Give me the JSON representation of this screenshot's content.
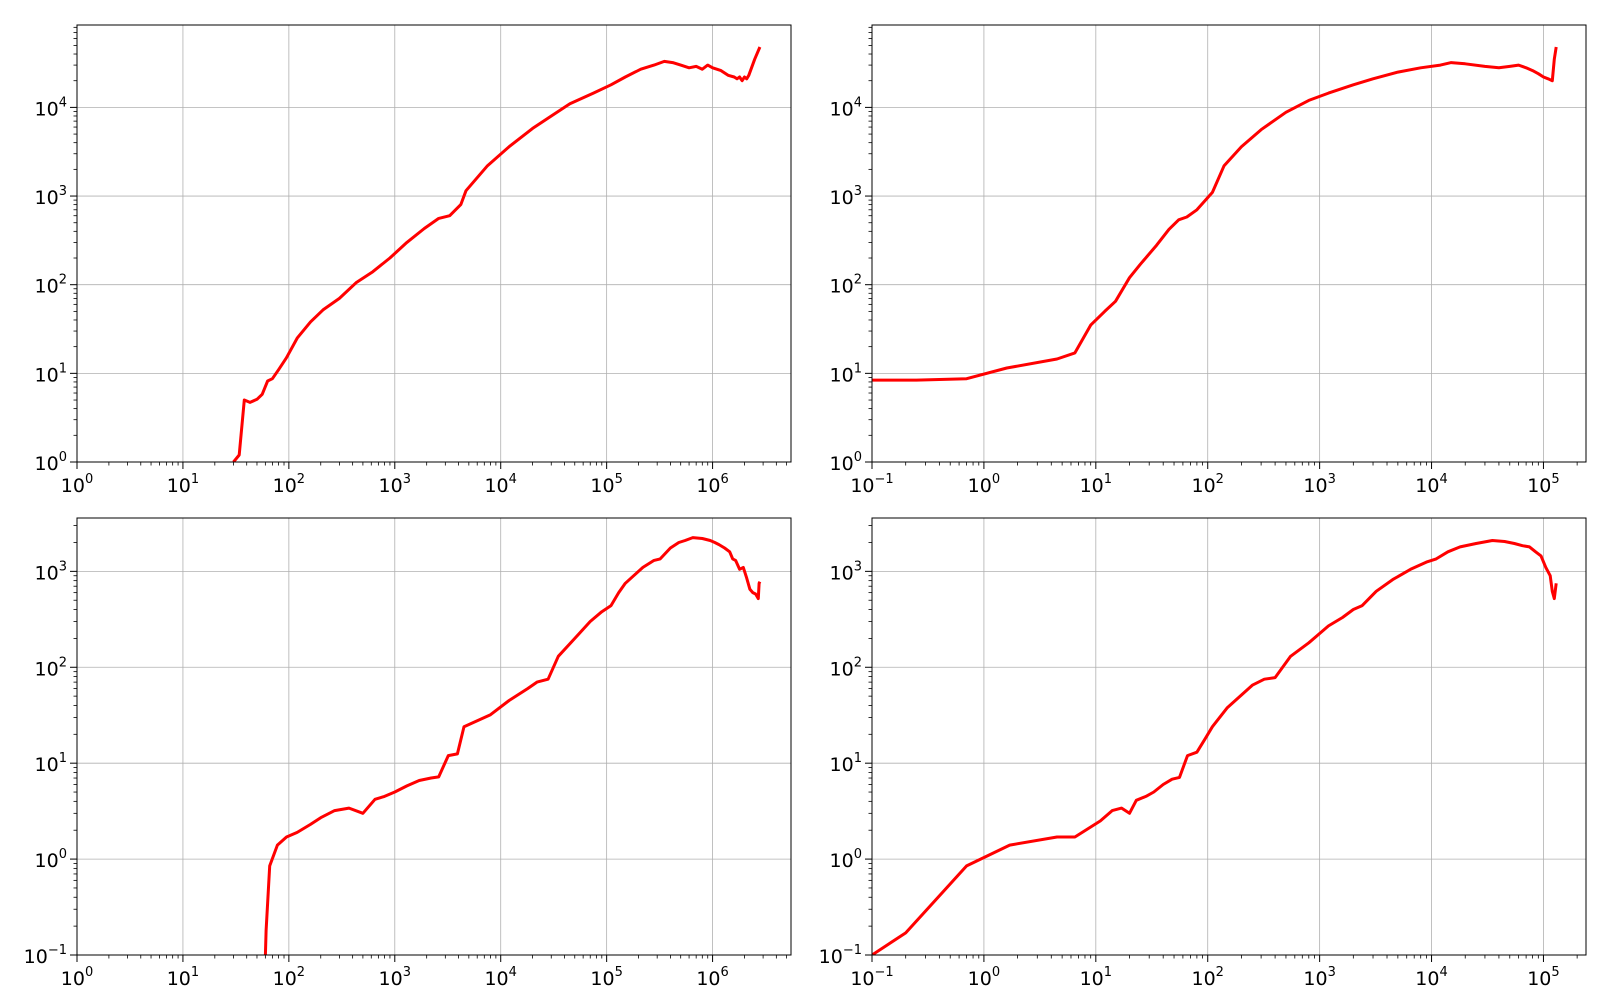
{
  "figure": {
    "line_color": "#ff0000",
    "grid_color": "#b0b0b0",
    "axes_color": "#000000",
    "background": "#ffffff"
  },
  "chart_data": [
    {
      "type": "line",
      "title": "",
      "xlabel": "",
      "ylabel": "",
      "xscale": "log",
      "yscale": "log",
      "grid": true,
      "xlim": [
        1,
        5500000
      ],
      "ylim": [
        1,
        85000
      ],
      "xticks": [
        {
          "base": "10",
          "exp": "0",
          "value": 1
        },
        {
          "base": "10",
          "exp": "1",
          "value": 10
        },
        {
          "base": "10",
          "exp": "2",
          "value": 100
        },
        {
          "base": "10",
          "exp": "3",
          "value": 1000
        },
        {
          "base": "10",
          "exp": "4",
          "value": 10000
        },
        {
          "base": "10",
          "exp": "5",
          "value": 100000
        },
        {
          "base": "10",
          "exp": "6",
          "value": 1000000
        }
      ],
      "yticks": [
        {
          "base": "10",
          "exp": "0",
          "value": 1
        },
        {
          "base": "10",
          "exp": "1",
          "value": 10
        },
        {
          "base": "10",
          "exp": "2",
          "value": 100
        },
        {
          "base": "10",
          "exp": "3",
          "value": 1000
        },
        {
          "base": "10",
          "exp": "4",
          "value": 10000
        }
      ],
      "series": [
        {
          "x": [
            30,
            34,
            38,
            43,
            50,
            56,
            63,
            70,
            80,
            95,
            120,
            160,
            210,
            300,
            430,
            620,
            900,
            1300,
            1900,
            2600,
            3300,
            4200,
            4700,
            7500,
            12000,
            20000,
            30000,
            45000,
            75000,
            110000,
            150000,
            210000,
            280000,
            350000,
            420000,
            500000,
            600000,
            700000,
            800000,
            900000,
            1000000,
            1200000,
            1400000,
            1600000,
            1700000,
            1800000,
            1900000,
            2000000,
            2100000,
            2200000,
            2500000,
            2800000
          ],
          "y": [
            1,
            1.2,
            5,
            4.7,
            5.1,
            5.8,
            8.2,
            8.7,
            11,
            15,
            25,
            38,
            52,
            70,
            105,
            140,
            200,
            300,
            430,
            560,
            600,
            800,
            1150,
            2200,
            3600,
            5800,
            8000,
            11000,
            14500,
            18000,
            22000,
            27000,
            30000,
            33000,
            32000,
            30000,
            28000,
            29000,
            27000,
            30000,
            28000,
            26000,
            23000,
            22000,
            21000,
            22000,
            20000,
            22000,
            21000,
            23000,
            35000,
            48000
          ]
        }
      ]
    },
    {
      "type": "line",
      "title": "",
      "xlabel": "",
      "ylabel": "",
      "xscale": "log",
      "yscale": "log",
      "grid": true,
      "xlim": [
        0.1,
        240000
      ],
      "ylim": [
        1,
        85000
      ],
      "xticks": [
        {
          "base": "10",
          "exp": "−1",
          "value": 0.1
        },
        {
          "base": "10",
          "exp": "0",
          "value": 1
        },
        {
          "base": "10",
          "exp": "1",
          "value": 10
        },
        {
          "base": "10",
          "exp": "2",
          "value": 100
        },
        {
          "base": "10",
          "exp": "3",
          "value": 1000
        },
        {
          "base": "10",
          "exp": "4",
          "value": 10000
        },
        {
          "base": "10",
          "exp": "5",
          "value": 100000
        }
      ],
      "yticks": [
        {
          "base": "10",
          "exp": "0",
          "value": 1
        },
        {
          "base": "10",
          "exp": "1",
          "value": 10
        },
        {
          "base": "10",
          "exp": "2",
          "value": 100
        },
        {
          "base": "10",
          "exp": "3",
          "value": 1000
        },
        {
          "base": "10",
          "exp": "4",
          "value": 10000
        }
      ],
      "series": [
        {
          "x": [
            0.1,
            0.25,
            0.7,
            1.6,
            4.5,
            6.5,
            9,
            12,
            15,
            20,
            25,
            35,
            45,
            55,
            65,
            80,
            110,
            140,
            200,
            300,
            500,
            800,
            1200,
            2000,
            3000,
            5000,
            8000,
            12000,
            15000,
            20000,
            30000,
            40000,
            50000,
            60000,
            70000,
            80000,
            90000,
            100000,
            110000,
            120000,
            125000,
            130000
          ],
          "y": [
            8.4,
            8.4,
            8.7,
            11.5,
            14.5,
            17,
            35,
            50,
            65,
            120,
            170,
            280,
            420,
            540,
            580,
            700,
            1100,
            2200,
            3600,
            5600,
            8800,
            12000,
            14500,
            18000,
            21000,
            25000,
            28000,
            30000,
            32000,
            31000,
            29000,
            28000,
            29000,
            30000,
            28000,
            26000,
            24000,
            22000,
            21000,
            20000,
            35000,
            48000
          ]
        }
      ]
    },
    {
      "type": "line",
      "title": "",
      "xlabel": "",
      "ylabel": "",
      "xscale": "log",
      "yscale": "log",
      "grid": true,
      "xlim": [
        1,
        5500000
      ],
      "ylim": [
        0.1,
        3600
      ],
      "xticks": [
        {
          "base": "10",
          "exp": "0",
          "value": 1
        },
        {
          "base": "10",
          "exp": "1",
          "value": 10
        },
        {
          "base": "10",
          "exp": "2",
          "value": 100
        },
        {
          "base": "10",
          "exp": "3",
          "value": 1000
        },
        {
          "base": "10",
          "exp": "4",
          "value": 10000
        },
        {
          "base": "10",
          "exp": "5",
          "value": 100000
        },
        {
          "base": "10",
          "exp": "6",
          "value": 1000000
        }
      ],
      "yticks": [
        {
          "base": "10",
          "exp": "−1",
          "value": 0.1
        },
        {
          "base": "10",
          "exp": "0",
          "value": 1
        },
        {
          "base": "10",
          "exp": "1",
          "value": 10
        },
        {
          "base": "10",
          "exp": "2",
          "value": 100
        },
        {
          "base": "10",
          "exp": "3",
          "value": 1000
        }
      ],
      "series": [
        {
          "x": [
            60,
            61,
            66,
            78,
            95,
            120,
            160,
            200,
            270,
            370,
            500,
            650,
            800,
            1000,
            1300,
            1700,
            2200,
            2600,
            3200,
            3900,
            4500,
            8000,
            12000,
            18000,
            22000,
            28000,
            35000,
            50000,
            70000,
            90000,
            110000,
            130000,
            150000,
            180000,
            220000,
            280000,
            320000,
            350000,
            400000,
            480000,
            550000,
            650000,
            800000,
            950000,
            1050000,
            1150000,
            1300000,
            1450000,
            1550000,
            1650000,
            1800000,
            1950000,
            2100000,
            2250000,
            2400000,
            2550000,
            2700000,
            2750000,
            2800000
          ],
          "y": [
            0.1,
            0.18,
            0.85,
            1.4,
            1.7,
            1.9,
            2.3,
            2.7,
            3.2,
            3.4,
            3.0,
            4.2,
            4.5,
            5.0,
            5.8,
            6.6,
            7.0,
            7.2,
            12,
            12.5,
            24,
            32,
            45,
            60,
            70,
            75,
            130,
            200,
            300,
            380,
            440,
            600,
            750,
            900,
            1100,
            1300,
            1350,
            1500,
            1750,
            2000,
            2100,
            2250,
            2200,
            2100,
            2000,
            1900,
            1750,
            1600,
            1350,
            1300,
            1050,
            1100,
            850,
            650,
            600,
            580,
            520,
            750,
            780
          ]
        }
      ]
    },
    {
      "type": "line",
      "title": "",
      "xlabel": "",
      "ylabel": "",
      "xscale": "log",
      "yscale": "log",
      "grid": true,
      "xlim": [
        0.1,
        240000
      ],
      "ylim": [
        0.1,
        3600
      ],
      "xticks": [
        {
          "base": "10",
          "exp": "−1",
          "value": 0.1
        },
        {
          "base": "10",
          "exp": "0",
          "value": 1
        },
        {
          "base": "10",
          "exp": "1",
          "value": 10
        },
        {
          "base": "10",
          "exp": "2",
          "value": 100
        },
        {
          "base": "10",
          "exp": "3",
          "value": 1000
        },
        {
          "base": "10",
          "exp": "4",
          "value": 10000
        },
        {
          "base": "10",
          "exp": "5",
          "value": 100000
        }
      ],
      "yticks": [
        {
          "base": "10",
          "exp": "−1",
          "value": 0.1
        },
        {
          "base": "10",
          "exp": "0",
          "value": 1
        },
        {
          "base": "10",
          "exp": "1",
          "value": 10
        },
        {
          "base": "10",
          "exp": "2",
          "value": 100
        },
        {
          "base": "10",
          "exp": "3",
          "value": 1000
        }
      ],
      "series": [
        {
          "x": [
            0.1,
            0.2,
            0.7,
            1.7,
            4.5,
            6.5,
            11,
            14,
            17,
            20,
            23,
            28,
            33,
            40,
            48,
            56,
            66,
            80,
            95,
            110,
            150,
            250,
            320,
            400,
            550,
            800,
            1200,
            1600,
            2000,
            2400,
            3200,
            4500,
            6500,
            9000,
            11000,
            14000,
            18000,
            25000,
            35000,
            45000,
            55000,
            65000,
            75000,
            85000,
            95000,
            105000,
            115000,
            120000,
            125000,
            130000
          ],
          "y": [
            0.1,
            0.17,
            0.85,
            1.4,
            1.7,
            1.7,
            2.5,
            3.2,
            3.4,
            3.0,
            4.1,
            4.5,
            5.0,
            6.0,
            6.8,
            7.1,
            12,
            13,
            18,
            24,
            38,
            65,
            75,
            78,
            130,
            180,
            270,
            330,
            400,
            440,
            620,
            820,
            1050,
            1250,
            1350,
            1600,
            1800,
            1950,
            2100,
            2050,
            1950,
            1850,
            1800,
            1600,
            1450,
            1100,
            900,
            620,
            520,
            750
          ]
        }
      ]
    }
  ]
}
